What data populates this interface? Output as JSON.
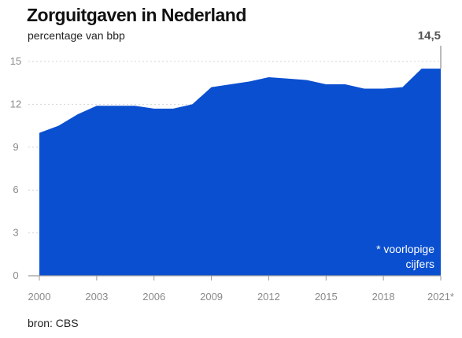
{
  "chart_data": {
    "type": "area",
    "title": "Zorguitgaven in Nederland",
    "subtitle": "percentage van bbp",
    "xlabel": "",
    "ylabel": "",
    "x": [
      2000,
      2001,
      2002,
      2003,
      2004,
      2005,
      2006,
      2007,
      2008,
      2009,
      2010,
      2011,
      2012,
      2013,
      2014,
      2015,
      2016,
      2017,
      2018,
      2019,
      2020,
      2021
    ],
    "series": [
      {
        "values": [
          10.0,
          10.5,
          11.3,
          11.9,
          11.9,
          11.9,
          11.7,
          11.7,
          12.0,
          13.2,
          13.4,
          13.6,
          13.9,
          13.8,
          13.7,
          13.4,
          13.4,
          13.1,
          13.1,
          13.2,
          14.5,
          14.5
        ]
      }
    ],
    "ylim": [
      0,
      15
    ],
    "yticks": [
      0,
      3,
      6,
      9,
      12,
      15
    ],
    "xticks": [
      "2000",
      "2003",
      "2006",
      "2009",
      "2012",
      "2015",
      "2018",
      "2021*"
    ],
    "xtick_years": [
      2000,
      2003,
      2006,
      2009,
      2012,
      2015,
      2018,
      2021
    ],
    "grid": true,
    "callout": {
      "label": "14,5",
      "year": 2021
    },
    "note": [
      "* voorlopige",
      "cijfers"
    ],
    "colors": {
      "area": "#0a4fd0",
      "grid": "#d4d4d4",
      "axis": "#9a9a9a"
    }
  },
  "source": "bron: CBS"
}
